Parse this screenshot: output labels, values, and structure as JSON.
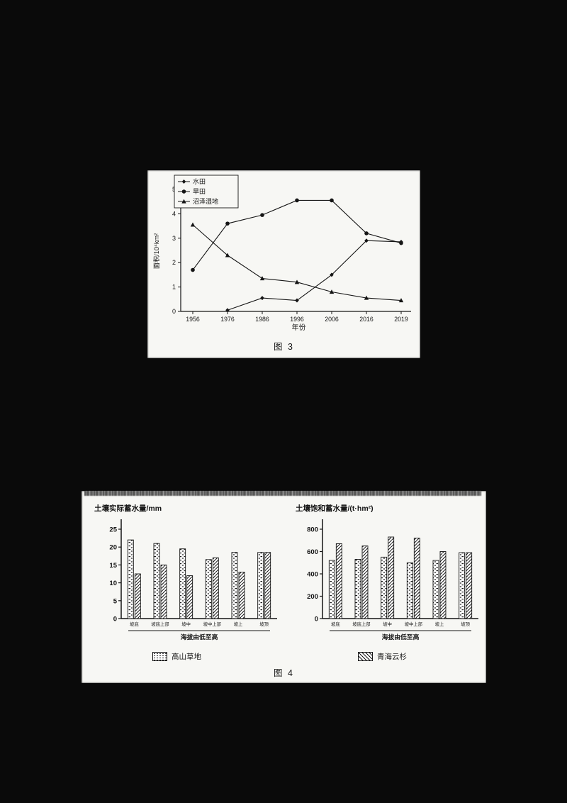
{
  "page": {
    "background": "#0a0a0a",
    "panel_background": "#f7f7f4",
    "ink": "#151515"
  },
  "fig3": {
    "caption": "图 3"
  },
  "fig4": {
    "caption": "图 4",
    "legend": [
      {
        "name": "高山草地",
        "pattern": "dots"
      },
      {
        "name": "青海云杉",
        "pattern": "hatch"
      }
    ]
  },
  "chart_data": [
    {
      "id": "fig3",
      "type": "line",
      "title": "",
      "xlabel": "年份",
      "ylabel": "面积/10⁴km²",
      "x_categories": [
        "1956",
        "1976",
        "1986",
        "1996",
        "2006",
        "2016",
        "2019"
      ],
      "ylim": [
        0,
        5
      ],
      "yticks": [
        0,
        1,
        2,
        3,
        4,
        5
      ],
      "legend_position": "upper-left",
      "grid": false,
      "series": [
        {
          "name": "水田",
          "marker": "diamond",
          "values": [
            null,
            0.05,
            0.55,
            0.45,
            1.5,
            2.9,
            2.85
          ]
        },
        {
          "name": "旱田",
          "marker": "circle",
          "values": [
            1.7,
            3.6,
            3.95,
            4.55,
            4.55,
            3.2,
            2.8
          ]
        },
        {
          "name": "沼泽湿地",
          "marker": "triangle",
          "values": [
            3.55,
            2.3,
            1.35,
            1.2,
            0.8,
            0.55,
            0.45
          ]
        }
      ]
    },
    {
      "id": "fig4-left",
      "type": "bar",
      "title": "土壤实际蓄水量/mm",
      "xlabel": "海拔由低至高",
      "categories": [
        "坡底",
        "坡底上部",
        "坡中",
        "坡中上部",
        "坡上",
        "坡顶"
      ],
      "ylim": [
        0,
        25
      ],
      "yticks": [
        0,
        5,
        10,
        15,
        20,
        25
      ],
      "grid": false,
      "series": [
        {
          "name": "高山草地",
          "pattern": "dots",
          "values": [
            22,
            21,
            19.5,
            16.5,
            18.5,
            18.5
          ]
        },
        {
          "name": "青海云杉",
          "pattern": "hatch",
          "values": [
            12.5,
            15,
            12,
            17,
            13,
            18.5
          ]
        }
      ]
    },
    {
      "id": "fig4-right",
      "type": "bar",
      "title": "土壤饱和蓄水量/(t·hm²)",
      "xlabel": "海拔由低至高",
      "categories": [
        "坡底",
        "坡底上部",
        "坡中",
        "坡中上部",
        "坡上",
        "坡顶"
      ],
      "ylim": [
        0,
        800
      ],
      "yticks": [
        0,
        200,
        400,
        600,
        800
      ],
      "grid": false,
      "series": [
        {
          "name": "高山草地",
          "pattern": "dots",
          "values": [
            520,
            530,
            550,
            500,
            520,
            590
          ]
        },
        {
          "name": "青海云杉",
          "pattern": "hatch",
          "values": [
            670,
            650,
            730,
            720,
            600,
            590
          ]
        }
      ]
    }
  ]
}
